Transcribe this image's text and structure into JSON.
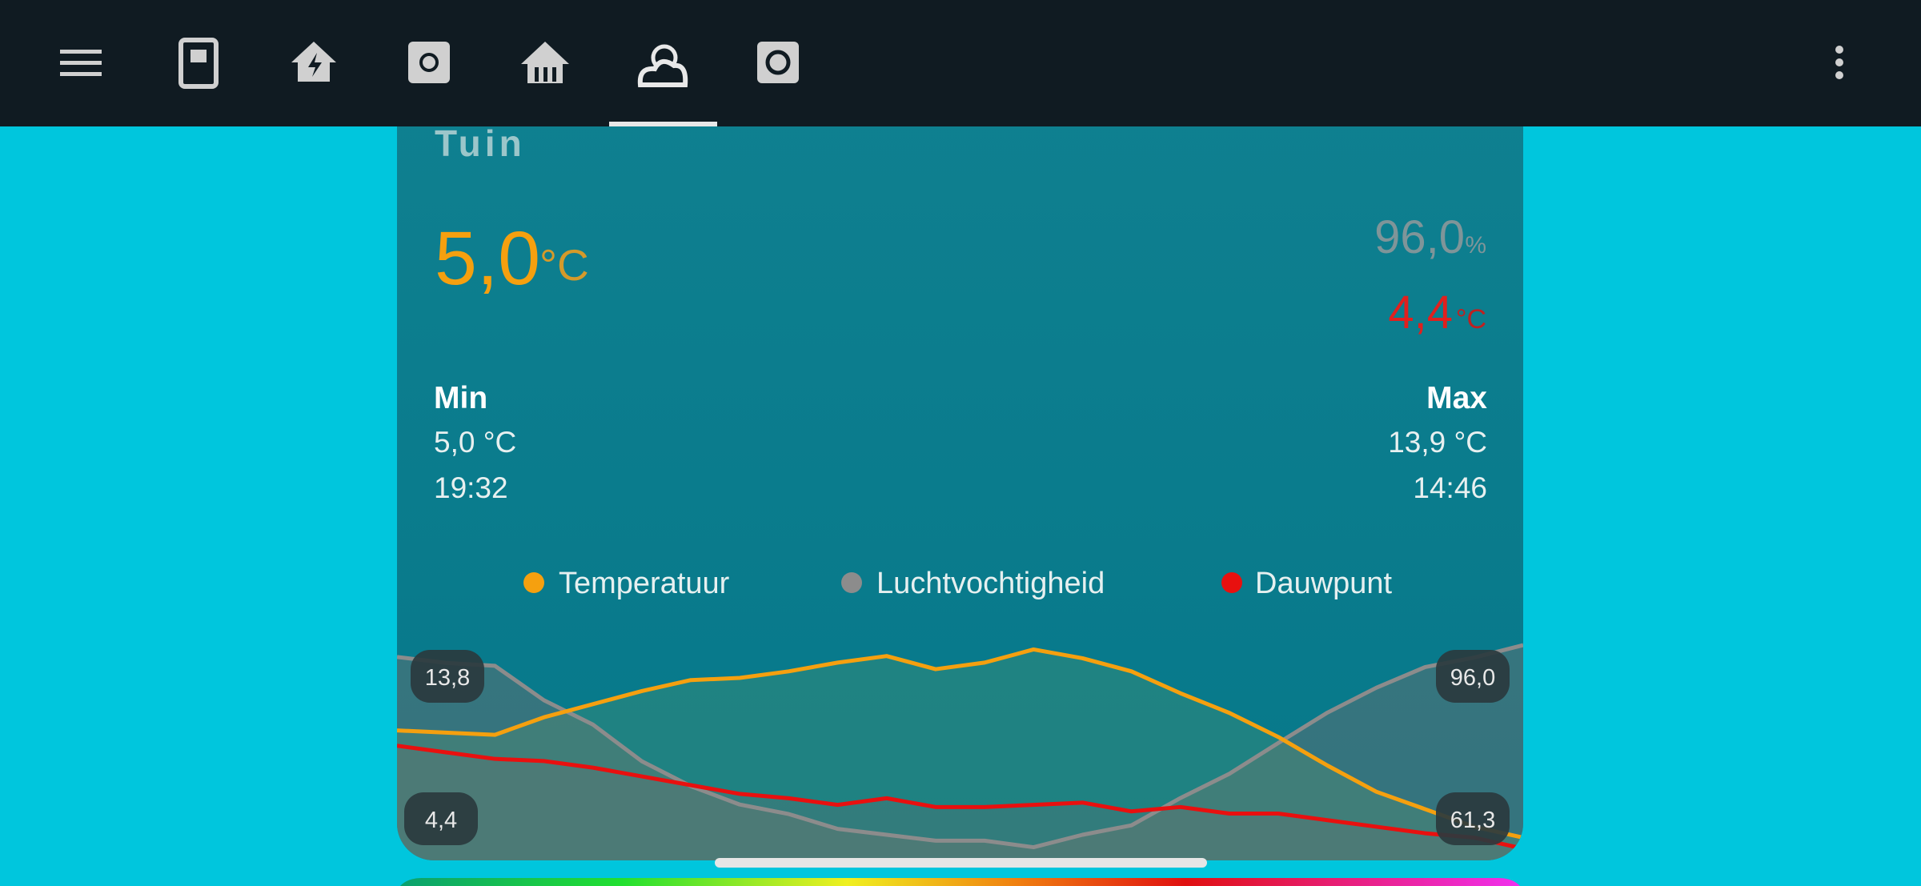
{
  "card": {
    "title": "Tuin",
    "temperature": {
      "value": "5,0",
      "unit": "°C"
    },
    "humidity": {
      "value": "96,0",
      "unit": "%"
    },
    "dew_point": {
      "value": "4,4",
      "unit": "°C"
    },
    "min": {
      "label": "Min",
      "value": "5,0 °C",
      "time": "19:32"
    },
    "max": {
      "label": "Max",
      "value": "13,9 °C",
      "time": "14:46"
    }
  },
  "chart_data": {
    "type": "line",
    "series": [
      {
        "name": "Temperatuur",
        "color": "#f5a00f",
        "values": [
          9.9,
          9.8,
          9.7,
          10.5,
          11.1,
          11.7,
          12.2,
          12.3,
          12.6,
          13.0,
          13.3,
          12.7,
          13.0,
          13.6,
          13.2,
          12.6,
          11.6,
          10.7,
          9.6,
          8.3,
          7.1,
          6.3,
          5.5,
          5.0
        ]
      },
      {
        "name": "Luchtvochtigheid",
        "color": "#8c8c8c",
        "axis": "y2",
        "values": [
          94,
          93,
          92.5,
          86.7,
          82.6,
          76.4,
          72.2,
          69.1,
          67.5,
          65,
          64,
          63,
          63,
          61.9,
          64,
          65.6,
          70.2,
          74.3,
          79.5,
          84.6,
          88.8,
          92.3,
          93.9,
          96
        ]
      },
      {
        "name": "Dauwpunt",
        "color": "#e8100f",
        "values": [
          9.2,
          8.9,
          8.6,
          8.5,
          8.2,
          7.8,
          7.4,
          7.0,
          6.8,
          6.5,
          6.8,
          6.4,
          6.4,
          6.5,
          6.6,
          6.2,
          6.4,
          6.1,
          6.1,
          5.8,
          5.5,
          5.2,
          5.0,
          4.5
        ]
      }
    ],
    "ylim": [
      4.4,
      13.8
    ],
    "yticks": [
      {
        "value": 4.4,
        "label": "4,4"
      },
      {
        "value": 13.8,
        "label": "13,8"
      }
    ],
    "y2lim": [
      61.3,
      96.0
    ],
    "y2ticks": [
      {
        "value": 61.3,
        "label": "61,3"
      },
      {
        "value": 96.0,
        "label": "96,0"
      }
    ]
  }
}
